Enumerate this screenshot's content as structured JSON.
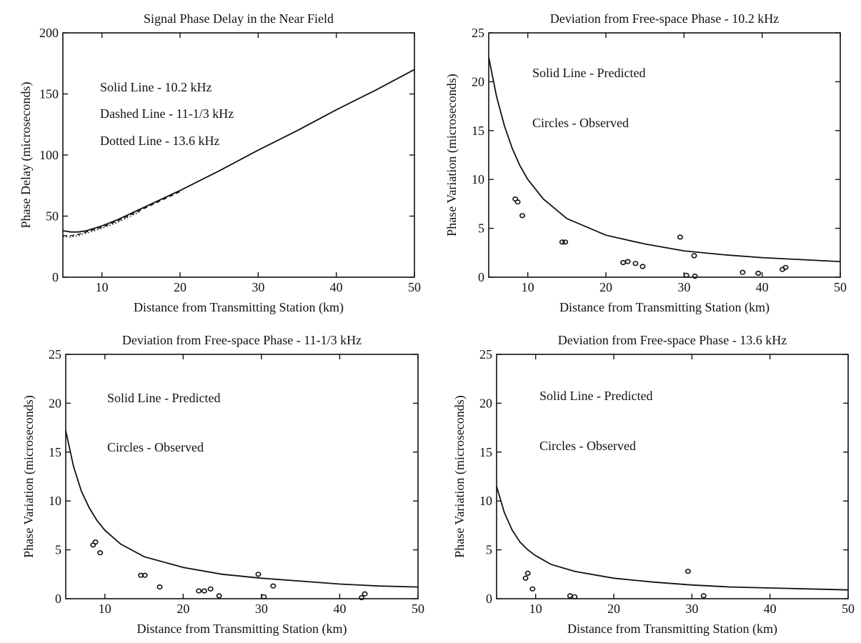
{
  "chart_data": [
    {
      "type": "line",
      "title": "Signal Phase Delay in the Near Field",
      "xlabel": "Distance from Transmitting Station (km)",
      "ylabel": "Phase Delay (microseconds)",
      "xlim": [
        5,
        50
      ],
      "ylim": [
        0,
        200
      ],
      "xticks": [
        10,
        20,
        30,
        40,
        50
      ],
      "yticks": [
        0,
        50,
        100,
        150,
        200
      ],
      "annotations": [
        "Solid Line - 10.2 kHz",
        "Dashed Line - 11-1/3 kHz",
        "Dotted Line - 13.6 kHz"
      ],
      "series": [
        {
          "style": "solid",
          "x": [
            5,
            6,
            7,
            8,
            9,
            10,
            12,
            15,
            20,
            25,
            30,
            35,
            40,
            45,
            50
          ],
          "y": [
            38,
            37,
            37,
            38,
            40,
            42,
            47,
            56,
            71,
            87,
            104,
            120,
            137,
            153,
            170
          ]
        },
        {
          "style": "dashed",
          "x": [
            5,
            6,
            7,
            8,
            9,
            10,
            12,
            15,
            20
          ],
          "y": [
            34,
            34,
            35,
            37,
            39,
            41,
            46,
            55,
            70
          ]
        },
        {
          "style": "dotted",
          "x": [
            5,
            6,
            7,
            8,
            9,
            10,
            12,
            15
          ],
          "y": [
            33,
            33,
            34,
            36,
            38,
            40,
            45,
            54
          ]
        }
      ]
    },
    {
      "type": "scatter",
      "title": "Deviation from Free-space Phase - 10.2 kHz",
      "xlabel": "Distance from Transmitting Station (km)",
      "ylabel": "Phase Variation (microseconds)",
      "xlim": [
        5,
        50
      ],
      "ylim": [
        0,
        25
      ],
      "xticks": [
        10,
        20,
        30,
        40,
        50
      ],
      "yticks": [
        0,
        5,
        10,
        15,
        20,
        25
      ],
      "annotations": [
        "Solid Line - Predicted",
        "Circles - Observed"
      ],
      "predicted": {
        "x": [
          5,
          6,
          7,
          8,
          9,
          10,
          12,
          15,
          20,
          25,
          30,
          35,
          40,
          45,
          50
        ],
        "y": [
          22.5,
          18.5,
          15.5,
          13.2,
          11.4,
          10.0,
          8.0,
          6.0,
          4.3,
          3.4,
          2.7,
          2.3,
          2.0,
          1.8,
          1.6
        ]
      },
      "observed": {
        "x": [
          8.4,
          8.7,
          9.3,
          14.4,
          14.8,
          22.2,
          22.8,
          23.8,
          24.7,
          29.5,
          30.3,
          31.3,
          31.4,
          37.5,
          39.5,
          42.6,
          43.0
        ],
        "y": [
          8.0,
          7.7,
          6.3,
          3.6,
          3.6,
          1.5,
          1.6,
          1.4,
          1.1,
          4.1,
          0.2,
          2.2,
          0.1,
          0.5,
          0.4,
          0.8,
          1.0
        ]
      }
    },
    {
      "type": "scatter",
      "title": "Deviation from Free-space Phase - 11-1/3 kHz",
      "xlabel": "Distance from Transmitting Station (km)",
      "ylabel": "Phase Variation (microseconds)",
      "xlim": [
        5,
        50
      ],
      "ylim": [
        0,
        25
      ],
      "xticks": [
        10,
        20,
        30,
        40,
        50
      ],
      "yticks": [
        0,
        5,
        10,
        15,
        20,
        25
      ],
      "annotations": [
        "Solid Line - Predicted",
        "Circles - Observed"
      ],
      "predicted": {
        "x": [
          5,
          6,
          7,
          8,
          9,
          10,
          12,
          15,
          20,
          25,
          30,
          35,
          40,
          45,
          50
        ],
        "y": [
          17.2,
          13.5,
          11.0,
          9.3,
          8.0,
          7.0,
          5.6,
          4.3,
          3.2,
          2.5,
          2.1,
          1.8,
          1.5,
          1.3,
          1.2
        ]
      },
      "observed": {
        "x": [
          8.5,
          8.8,
          9.4,
          14.6,
          15.1,
          17.0,
          22.0,
          22.7,
          23.5,
          24.6,
          29.6,
          30.3,
          31.5,
          42.8,
          43.2
        ],
        "y": [
          5.5,
          5.8,
          4.7,
          2.4,
          2.4,
          1.2,
          0.8,
          0.8,
          1.0,
          0.3,
          2.5,
          0.2,
          1.3,
          0.1,
          0.5
        ]
      }
    },
    {
      "type": "scatter",
      "title": "Deviation from Free-space Phase - 13.6 kHz",
      "xlabel": "Distance from Transmitting Station (km)",
      "ylabel": "Phase Variation (microseconds)",
      "xlim": [
        5,
        50
      ],
      "ylim": [
        0,
        25
      ],
      "xticks": [
        10,
        20,
        30,
        40,
        50
      ],
      "yticks": [
        0,
        5,
        10,
        15,
        20,
        25
      ],
      "annotations": [
        "Solid Line - Predicted",
        "Circles - Observed"
      ],
      "predicted": {
        "x": [
          5,
          6,
          7,
          8,
          9,
          10,
          12,
          15,
          20,
          25,
          30,
          35,
          40,
          45,
          50
        ],
        "y": [
          11.5,
          8.8,
          7.0,
          5.8,
          5.0,
          4.4,
          3.5,
          2.8,
          2.1,
          1.7,
          1.4,
          1.2,
          1.1,
          1.0,
          0.9
        ]
      },
      "observed": {
        "x": [
          8.7,
          9.0,
          9.6,
          14.4,
          15.0,
          29.5,
          31.5
        ],
        "y": [
          2.1,
          2.6,
          1.0,
          0.3,
          0.2,
          2.8,
          0.3
        ]
      }
    }
  ]
}
